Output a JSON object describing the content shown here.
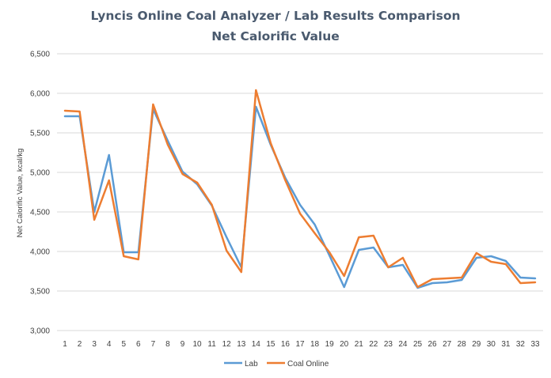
{
  "chart_data": {
    "type": "line",
    "title": "Lyncis Online Coal Analyzer / Lab Results Comparison",
    "subtitle": "Net Calorific Value",
    "xlabel": "",
    "ylabel": "Net Calorific Value, kcal/kg",
    "ylim": [
      3000,
      6500
    ],
    "yticks": [
      3000,
      3500,
      4000,
      4500,
      5000,
      5500,
      6000,
      6500
    ],
    "ytick_labels": [
      "3,000",
      "3,500",
      "4,000",
      "4,500",
      "5,000",
      "5,500",
      "6,000",
      "6,500"
    ],
    "grid": true,
    "legend_position": "bottom",
    "categories": [
      "1",
      "2",
      "3",
      "4",
      "5",
      "6",
      "7",
      "8",
      "9",
      "10",
      "11",
      "12",
      "13",
      "14",
      "15",
      "16",
      "17",
      "18",
      "19",
      "20",
      "21",
      "22",
      "23",
      "24",
      "25",
      "26",
      "27",
      "28",
      "29",
      "30",
      "31",
      "32",
      "33"
    ],
    "series": [
      {
        "name": "Lab",
        "color": "#5b9bd5",
        "values": [
          5710,
          5710,
          4500,
          5220,
          3990,
          3990,
          5800,
          5400,
          5010,
          4850,
          4580,
          4180,
          3800,
          5830,
          5350,
          4930,
          4590,
          4340,
          3950,
          3550,
          4020,
          4050,
          3800,
          3830,
          3540,
          3600,
          3610,
          3640,
          3920,
          3940,
          3880,
          3670,
          3660
        ]
      },
      {
        "name": "Coal Online",
        "color": "#ed7d31",
        "values": [
          5780,
          5770,
          4400,
          4900,
          3940,
          3900,
          5860,
          5350,
          4980,
          4870,
          4590,
          4010,
          3740,
          6040,
          5370,
          4900,
          4480,
          4230,
          3990,
          3690,
          4180,
          4200,
          3800,
          3920,
          3550,
          3650,
          3660,
          3670,
          3980,
          3870,
          3840,
          3600,
          3610
        ]
      }
    ]
  }
}
